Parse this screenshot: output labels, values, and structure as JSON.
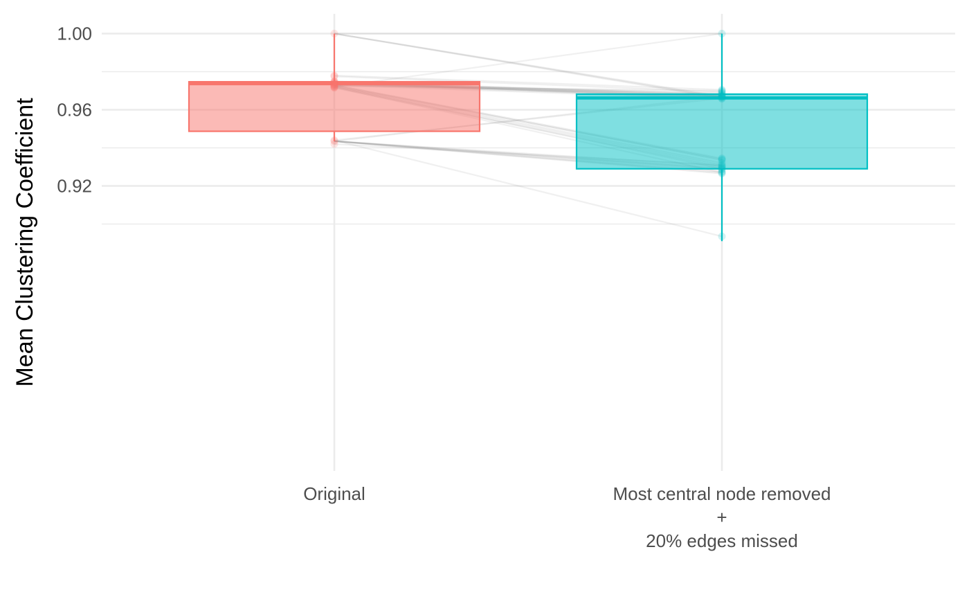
{
  "chart_data": {
    "type": "box",
    "title": "",
    "xlabel": "",
    "ylabel": "Mean Clustering Coefficient",
    "ylim": [
      0.893,
      1.0055
    ],
    "y_ticks": [
      {
        "value": 1.0,
        "label": "1.00"
      },
      {
        "value": 0.96,
        "label": "0.96"
      },
      {
        "value": 0.92,
        "label": "0.92"
      }
    ],
    "y_minor_ticks": [
      0.98,
      0.94,
      0.9
    ],
    "grid": true,
    "legend": "none",
    "groups": [
      {
        "label_lines": [
          "Original"
        ],
        "color": "#F8766D",
        "fill": "#F8766D",
        "whisker_low": 0.9435,
        "q1": 0.9487,
        "median": 0.9737,
        "q3": 0.9747,
        "whisker_high": 1.0
      },
      {
        "label_lines": [
          "Most central node removed",
          "+",
          "20% edges missed"
        ],
        "color": "#00BFC4",
        "fill": "#00BFC4",
        "whisker_low": 0.891,
        "q1": 0.929,
        "median": 0.9662,
        "q3": 0.9682,
        "whisker_high": 1.0
      }
    ],
    "paired_lines": [
      [
        1.0,
        1.0
      ],
      [
        1.0,
        0.967
      ],
      [
        1.0,
        0.966
      ],
      [
        1.0,
        0.9665
      ],
      [
        0.9745,
        0.967
      ],
      [
        0.9745,
        0.968
      ],
      [
        0.9742,
        0.9665
      ],
      [
        0.974,
        0.967
      ],
      [
        0.9738,
        0.966
      ],
      [
        0.9735,
        0.9675
      ],
      [
        0.973,
        0.9685
      ],
      [
        0.9735,
        0.969
      ],
      [
        0.9748,
        0.968
      ],
      [
        0.975,
        0.9672
      ],
      [
        0.9732,
        0.9668
      ],
      [
        0.9728,
        0.9658
      ],
      [
        0.9725,
        0.97
      ],
      [
        0.978,
        0.9705
      ],
      [
        0.9775,
        0.9695
      ],
      [
        0.9745,
        0.966
      ],
      [
        0.9725,
        0.934
      ],
      [
        0.972,
        0.931
      ],
      [
        0.9722,
        0.929
      ],
      [
        0.9718,
        0.927
      ],
      [
        0.9725,
        0.932
      ],
      [
        0.9715,
        0.93
      ],
      [
        0.973,
        0.9335
      ],
      [
        0.9435,
        0.9285
      ],
      [
        0.9435,
        0.927
      ],
      [
        0.9435,
        0.929
      ],
      [
        0.9435,
        0.9275
      ],
      [
        0.9435,
        0.9295
      ],
      [
        0.9435,
        0.9265
      ],
      [
        0.9435,
        0.9305
      ],
      [
        0.9435,
        0.967
      ],
      [
        0.944,
        0.966
      ],
      [
        0.944,
        0.8935
      ],
      [
        0.942,
        0.931
      ],
      [
        0.972,
        1.0
      ],
      [
        0.973,
        0.9345
      ]
    ]
  }
}
